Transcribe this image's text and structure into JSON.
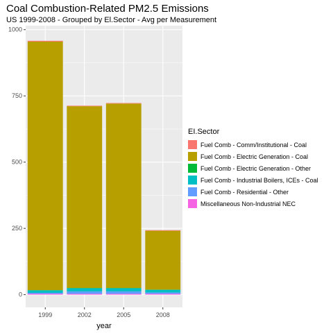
{
  "chart_data": {
    "type": "bar",
    "stacked": true,
    "title": "Coal Combustion-Related PM2.5 Emissions",
    "subtitle": "US 1999-2008 - Grouped by El.Sector - Avg per Measurement",
    "xlabel": "year",
    "ylabel": "",
    "ylim": [
      0,
      1000
    ],
    "yticks": [
      "0",
      "250",
      "500",
      "750",
      "1000"
    ],
    "ytick_values": [
      0,
      250,
      500,
      750,
      1000
    ],
    "categories": [
      "1999",
      "2002",
      "2005",
      "2008"
    ],
    "grid": true,
    "legend_position": "right",
    "legend_title": "EI.Sector",
    "series": [
      {
        "name": "Miscellaneous Non-Industrial NEC",
        "color": "#F564E3",
        "values": [
          3,
          3,
          3,
          3
        ]
      },
      {
        "name": "Fuel Comb - Residential - Other",
        "color": "#619CFF",
        "values": [
          4,
          9,
          9,
          5
        ]
      },
      {
        "name": "Fuel Comb - Industrial Boilers, ICEs - Coal",
        "color": "#00BFC4",
        "values": [
          9,
          12,
          12,
          10
        ]
      },
      {
        "name": "Fuel Comb - Electric Generation - Other",
        "color": "#00BA38",
        "values": [
          1,
          1,
          1,
          1
        ]
      },
      {
        "name": "Fuel Comb - Electric Generation - Coal",
        "color": "#B79F00",
        "values": [
          938,
          686,
          696,
          222
        ]
      },
      {
        "name": "Fuel Comb - Comm/Institutional - Coal",
        "color": "#F8766D",
        "values": [
          3,
          2,
          2,
          2
        ]
      }
    ],
    "legend_order": [
      "Fuel Comb - Comm/Institutional - Coal",
      "Fuel Comb - Electric Generation - Coal",
      "Fuel Comb - Electric Generation - Other",
      "Fuel Comb - Industrial Boilers, ICEs - Coal",
      "Fuel Comb - Residential - Other",
      "Miscellaneous Non-Industrial NEC"
    ]
  }
}
